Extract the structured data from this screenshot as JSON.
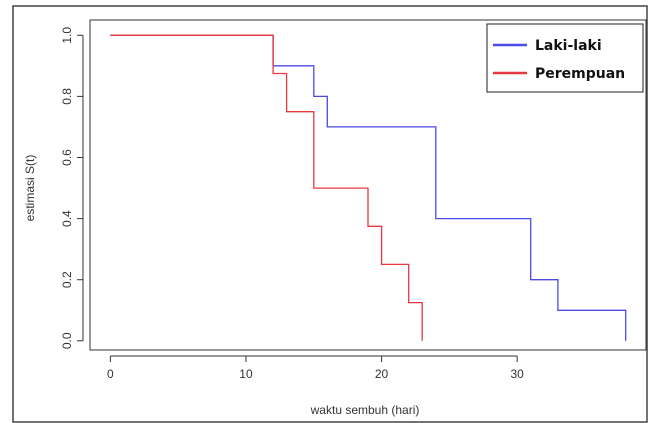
{
  "chart_data": {
    "type": "line",
    "step": true,
    "xlabel": "waktu sembuh (hari)",
    "ylabel": "estimasi S(t)",
    "xlim": [
      -1.5,
      39.5
    ],
    "ylim": [
      -0.03,
      1.05
    ],
    "x_ticks": [
      0,
      10,
      20,
      30
    ],
    "y_ticks": [
      0.0,
      0.2,
      0.4,
      0.6,
      0.8,
      1.0
    ],
    "x_tick_labels": [
      "0",
      "10",
      "20",
      "30"
    ],
    "y_tick_labels": [
      "0.0",
      "0.2",
      "0.4",
      "0.6",
      "0.8",
      "1.0"
    ],
    "grid": false,
    "legend_position": "top-right",
    "series": [
      {
        "name": "Laki-laki",
        "color": "#4a4ae6",
        "points": [
          [
            0,
            1.0
          ],
          [
            12,
            0.9
          ],
          [
            15,
            0.8
          ],
          [
            16,
            0.7
          ],
          [
            24,
            0.4
          ],
          [
            31,
            0.2
          ],
          [
            33,
            0.1
          ],
          [
            38,
            0.0
          ]
        ]
      },
      {
        "name": "Perempuan",
        "color": "#e8383d",
        "points": [
          [
            0,
            1.0
          ],
          [
            12,
            0.875
          ],
          [
            13,
            0.75
          ],
          [
            15,
            0.5
          ],
          [
            19,
            0.375
          ],
          [
            20,
            0.25
          ],
          [
            22,
            0.125
          ],
          [
            23,
            0.0
          ]
        ]
      }
    ]
  }
}
